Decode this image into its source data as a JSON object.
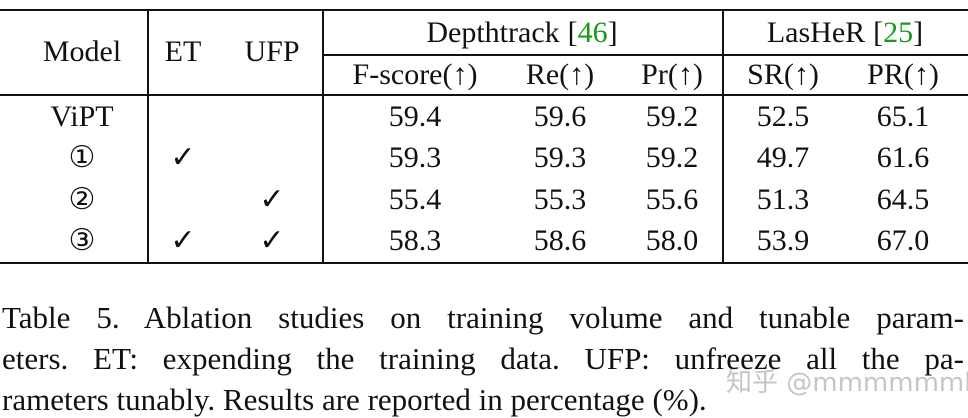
{
  "table": {
    "header": {
      "model": "Model",
      "et": "ET",
      "ufp": "UFP",
      "groups": [
        {
          "name": "Depthtrack",
          "open": "[",
          "cite": "46",
          "close": "]"
        },
        {
          "name": "LasHeR",
          "open": "[",
          "cite": "25",
          "close": "]"
        }
      ],
      "metrics": [
        "F-score(↑)",
        "Re(↑)",
        "Pr(↑)",
        "SR(↑)",
        "PR(↑)"
      ]
    },
    "rows": [
      {
        "model": "ViPT",
        "et": null,
        "ufp": null,
        "values": [
          "59.4",
          "59.6",
          "59.2",
          "52.5",
          "65.1"
        ]
      },
      {
        "model": "①",
        "et": "✓",
        "ufp": null,
        "values": [
          "59.3",
          "59.3",
          "59.2",
          "49.7",
          "61.6"
        ]
      },
      {
        "model": "②",
        "et": null,
        "ufp": "✓",
        "values": [
          "55.4",
          "55.3",
          "55.6",
          "51.3",
          "64.5"
        ]
      },
      {
        "model": "③",
        "et": "✓",
        "ufp": "✓",
        "values": [
          "58.3",
          "58.6",
          "58.0",
          "53.9",
          "67.0"
        ]
      }
    ]
  },
  "caption": {
    "lines": [
      "Table 5.  Ablation studies on training volume and tunable param-",
      "eters. ET: expending the training data. UFP: unfreeze all the pa-",
      "rameters tunably. Results are reported in percentage (%)."
    ]
  },
  "watermark": "知乎 @mmmmmmk"
}
